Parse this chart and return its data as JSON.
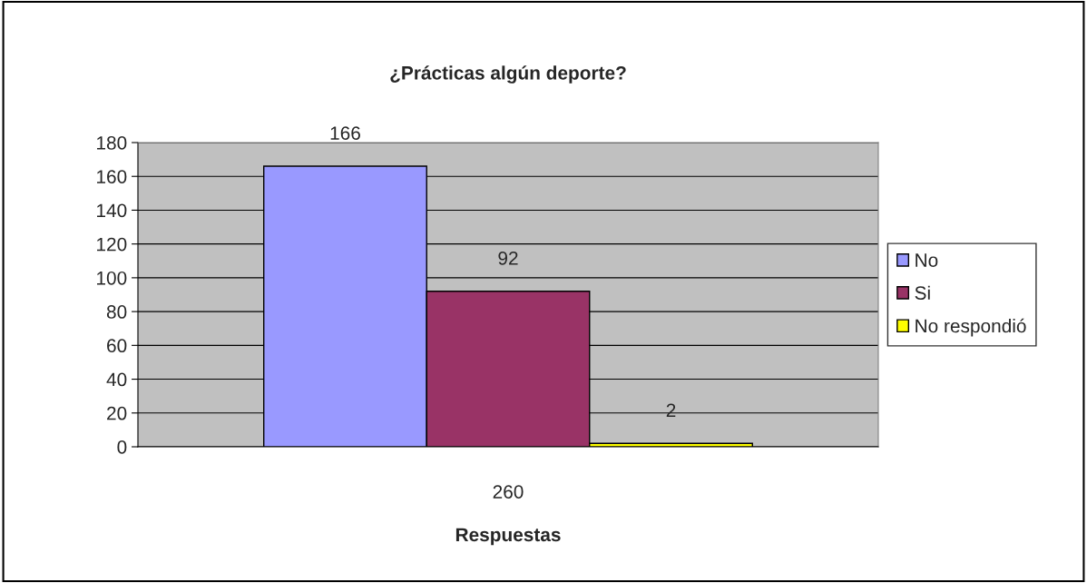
{
  "chart_data": {
    "type": "bar",
    "title": "¿Prácticas algún deporte?",
    "xlabel": "Respuestas",
    "categories": [
      "260"
    ],
    "series": [
      {
        "name": "No",
        "color": "#9999ff",
        "values": [
          166
        ]
      },
      {
        "name": "Si",
        "color": "#993366",
        "values": [
          92
        ]
      },
      {
        "name": "No respondió",
        "color": "#ffff00",
        "values": [
          2
        ]
      }
    ],
    "ylim": [
      0,
      180
    ],
    "yticks": [
      0,
      20,
      40,
      60,
      80,
      100,
      120,
      140,
      160,
      180
    ],
    "grid": "y",
    "legend": "right",
    "data_labels": true
  }
}
